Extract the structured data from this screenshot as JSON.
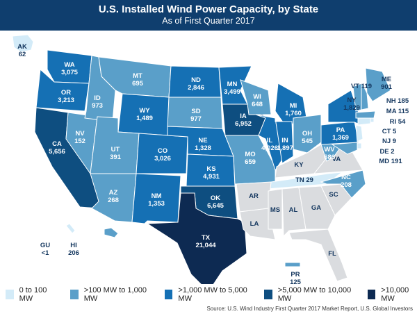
{
  "title": "U.S. Installed Wind Power Capacity, by State",
  "subtitle": "As of First Quarter 2017",
  "colors": [
    "#d3ebf8",
    "#5a9fc9",
    "#1570b4",
    "#0e4e80",
    "#0d2a52"
  ],
  "no_data_color": "#dadcdf",
  "legend": [
    "0 to 100 MW",
    ">100 MW to 1,000 MW",
    ">1,000 MW to 5,000 MW",
    ">5,000 MW to 10,000 MW",
    ">10,000 MW"
  ],
  "source": "Source: U.S. Wind Industry First Quarter 2017 Market Report, U.S. Global Investors",
  "states": [
    {
      "abbr": "AK",
      "value": "62",
      "bin": 0
    },
    {
      "abbr": "WA",
      "value": "3,075",
      "bin": 2
    },
    {
      "abbr": "OR",
      "value": "3,213",
      "bin": 2
    },
    {
      "abbr": "CA",
      "value": "5,656",
      "bin": 3
    },
    {
      "abbr": "NV",
      "value": "152",
      "bin": 1
    },
    {
      "abbr": "ID",
      "value": "973",
      "bin": 1
    },
    {
      "abbr": "MT",
      "value": "695",
      "bin": 1
    },
    {
      "abbr": "WY",
      "value": "1,489",
      "bin": 2
    },
    {
      "abbr": "UT",
      "value": "391",
      "bin": 1
    },
    {
      "abbr": "AZ",
      "value": "268",
      "bin": 1
    },
    {
      "abbr": "CO",
      "value": "3,026",
      "bin": 2
    },
    {
      "abbr": "NM",
      "value": "1,353",
      "bin": 2
    },
    {
      "abbr": "ND",
      "value": "2,846",
      "bin": 2
    },
    {
      "abbr": "SD",
      "value": "977",
      "bin": 1
    },
    {
      "abbr": "NE",
      "value": "1,328",
      "bin": 2
    },
    {
      "abbr": "KS",
      "value": "4,931",
      "bin": 2
    },
    {
      "abbr": "OK",
      "value": "6,645",
      "bin": 3
    },
    {
      "abbr": "TX",
      "value": "21,044",
      "bin": 4
    },
    {
      "abbr": "MN",
      "value": "3,499",
      "bin": 2
    },
    {
      "abbr": "IA",
      "value": "6,952",
      "bin": 3
    },
    {
      "abbr": "MO",
      "value": "659",
      "bin": 1
    },
    {
      "abbr": "WI",
      "value": "648",
      "bin": 1
    },
    {
      "abbr": "IL",
      "value": "4,026",
      "bin": 2
    },
    {
      "abbr": "MI",
      "value": "1,760",
      "bin": 2
    },
    {
      "abbr": "IN",
      "value": "1,897",
      "bin": 2
    },
    {
      "abbr": "OH",
      "value": "545",
      "bin": 1
    },
    {
      "abbr": "KY",
      "value": "",
      "bin": null
    },
    {
      "abbr": "TN",
      "value": "29",
      "bin": 0
    },
    {
      "abbr": "AR",
      "value": "",
      "bin": null
    },
    {
      "abbr": "LA",
      "value": "",
      "bin": null
    },
    {
      "abbr": "MS",
      "value": "",
      "bin": null
    },
    {
      "abbr": "AL",
      "value": "",
      "bin": null
    },
    {
      "abbr": "GA",
      "value": "",
      "bin": null
    },
    {
      "abbr": "FL",
      "value": "",
      "bin": null
    },
    {
      "abbr": "SC",
      "value": "",
      "bin": null
    },
    {
      "abbr": "NC",
      "value": "208",
      "bin": 1
    },
    {
      "abbr": "VA",
      "value": "",
      "bin": null
    },
    {
      "abbr": "WV",
      "value": "686",
      "bin": 1
    },
    {
      "abbr": "PA",
      "value": "1,369",
      "bin": 2
    },
    {
      "abbr": "NY",
      "value": "1,829",
      "bin": 2
    },
    {
      "abbr": "VT",
      "value": "119",
      "bin": 1
    },
    {
      "abbr": "NH",
      "value": "185",
      "bin": 1
    },
    {
      "abbr": "ME",
      "value": "901",
      "bin": 1
    },
    {
      "abbr": "MA",
      "value": "115",
      "bin": 1
    },
    {
      "abbr": "RI",
      "value": "54",
      "bin": 0
    },
    {
      "abbr": "CT",
      "value": "5",
      "bin": 0
    },
    {
      "abbr": "NJ",
      "value": "9",
      "bin": 0
    },
    {
      "abbr": "DE",
      "value": "2",
      "bin": 0
    },
    {
      "abbr": "MD",
      "value": "191",
      "bin": 1
    },
    {
      "abbr": "HI",
      "value": "206",
      "bin": 1
    },
    {
      "abbr": "GU",
      "value": "<1",
      "bin": 0
    },
    {
      "abbr": "PR",
      "value": "125",
      "bin": 1
    }
  ]
}
